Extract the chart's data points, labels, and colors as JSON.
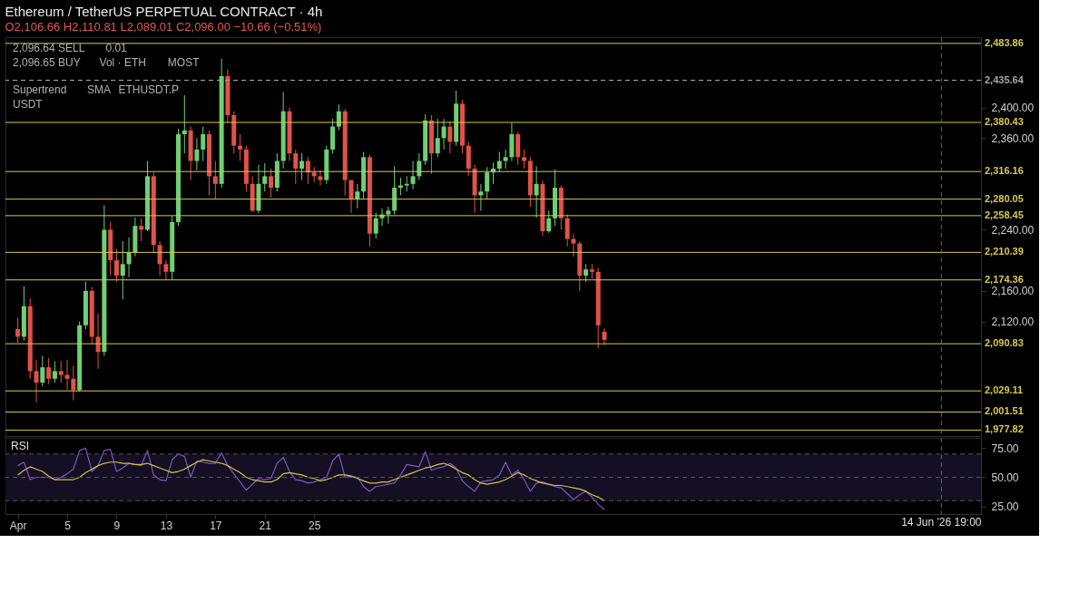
{
  "chart_data": [
    {
      "type": "candlestick",
      "title": "Ethereum / TetherUS PERPETUAL CONTRACT · 4h",
      "subtitle": "O2,106.66 H2,110.81 L2,089.01 C2,096.00 −10.66 (−0.51%)",
      "x": [
        "2026-04-01T00:00",
        "2026-04-01T12:00",
        "2026-04-02T00:00",
        "2026-04-02T12:00",
        "2026-04-03T00:00",
        "2026-04-03T12:00",
        "2026-04-04T00:00",
        "2026-04-04T12:00",
        "2026-04-05T00:00",
        "2026-04-05T12:00",
        "2026-04-06T00:00",
        "2026-04-06T12:00",
        "2026-04-07T00:00",
        "2026-04-07T12:00",
        "2026-04-08T00:00",
        "2026-04-08T12:00",
        "2026-04-09T00:00",
        "2026-04-09T12:00",
        "2026-04-10T00:00",
        "2026-04-10T12:00",
        "2026-04-11T00:00",
        "2026-04-11T12:00",
        "2026-04-12T00:00",
        "2026-04-12T12:00",
        "2026-04-13T00:00",
        "2026-04-13T12:00",
        "2026-04-14T00:00",
        "2026-04-14T12:00",
        "2026-04-15T00:00",
        "2026-04-15T12:00",
        "2026-04-16T00:00",
        "2026-04-16T12:00",
        "2026-04-17T00:00",
        "2026-04-17T12:00",
        "2026-04-18T00:00",
        "2026-04-18T12:00",
        "2026-04-19T00:00",
        "2026-04-19T12:00",
        "2026-04-20T00:00",
        "2026-04-20T12:00",
        "2026-04-21T00:00",
        "2026-04-21T12:00",
        "2026-04-22T00:00",
        "2026-04-22T12:00",
        "2026-04-23T00:00",
        "2026-04-23T12:00",
        "2026-04-24T00:00",
        "2026-04-24T12:00",
        "2026-04-25T00:00",
        "2026-04-25T12:00",
        "2026-04-26T00:00",
        "2026-04-26T12:00",
        "2026-04-27T00:00",
        "2026-04-27T12:00",
        "2026-04-28T00:00",
        "2026-04-28T12:00",
        "2026-04-29T00:00",
        "2026-04-29T12:00",
        "2026-04-30T00:00",
        "2026-04-30T12:00",
        "2026-05-01T00:00",
        "2026-05-01T12:00",
        "2026-05-02T00:00",
        "2026-05-02T12:00",
        "2026-05-03T00:00",
        "2026-05-03T12:00",
        "2026-05-04T00:00",
        "2026-05-04T12:00",
        "2026-05-05T00:00",
        "2026-05-05T12:00",
        "2026-05-06T00:00",
        "2026-05-06T12:00",
        "2026-05-07T00:00",
        "2026-05-07T12:00",
        "2026-05-08T00:00",
        "2026-05-08T12:00",
        "2026-05-09T00:00",
        "2026-05-09T12:00",
        "2026-05-10T00:00",
        "2026-05-10T12:00",
        "2026-05-11T00:00",
        "2026-05-11T12:00",
        "2026-05-12T00:00",
        "2026-05-12T12:00",
        "2026-05-13T00:00",
        "2026-05-13T12:00",
        "2026-05-14T00:00",
        "2026-05-14T12:00",
        "2026-05-15T00:00",
        "2026-05-15T12:00",
        "2026-05-16T00:00",
        "2026-05-16T12:00",
        "2026-05-17T00:00",
        "2026-05-17T12:00",
        "2026-05-18T00:00",
        "2026-05-18T12:00"
      ],
      "ohlc": [
        [
          2110,
          2125,
          2092,
          2100
        ],
        [
          2100,
          2166,
          2095,
          2140
        ],
        [
          2140,
          2150,
          2045,
          2055
        ],
        [
          2055,
          2070,
          2014,
          2040
        ],
        [
          2040,
          2075,
          2035,
          2060
        ],
        [
          2060,
          2072,
          2038,
          2045
        ],
        [
          2045,
          2068,
          2040,
          2055
        ],
        [
          2055,
          2068,
          2040,
          2050
        ],
        [
          2050,
          2070,
          2030,
          2045
        ],
        [
          2045,
          2062,
          2017,
          2030
        ],
        [
          2030,
          2120,
          2028,
          2115
        ],
        [
          2115,
          2172,
          2110,
          2160
        ],
        [
          2160,
          2165,
          2090,
          2100
        ],
        [
          2100,
          2130,
          2058,
          2080
        ],
        [
          2080,
          2272,
          2075,
          2240
        ],
        [
          2240,
          2250,
          2180,
          2200
        ],
        [
          2200,
          2215,
          2172,
          2180
        ],
        [
          2180,
          2225,
          2149,
          2195
        ],
        [
          2195,
          2230,
          2178,
          2210
        ],
        [
          2210,
          2256,
          2205,
          2245
        ],
        [
          2245,
          2255,
          2225,
          2240
        ],
        [
          2240,
          2330,
          2238,
          2310
        ],
        [
          2310,
          2315,
          2210,
          2220
        ],
        [
          2220,
          2225,
          2180,
          2195
        ],
        [
          2195,
          2200,
          2174,
          2185
        ],
        [
          2185,
          2258,
          2175,
          2250
        ],
        [
          2250,
          2372,
          2245,
          2365
        ],
        [
          2365,
          2416,
          2340,
          2370
        ],
        [
          2370,
          2375,
          2305,
          2330
        ],
        [
          2330,
          2360,
          2318,
          2345
        ],
        [
          2345,
          2375,
          2330,
          2365
        ],
        [
          2365,
          2370,
          2285,
          2310
        ],
        [
          2310,
          2330,
          2280,
          2300
        ],
        [
          2300,
          2464,
          2295,
          2441
        ],
        [
          2441,
          2450,
          2380,
          2390
        ],
        [
          2390,
          2395,
          2340,
          2350
        ],
        [
          2350,
          2365,
          2330,
          2345
        ],
        [
          2345,
          2350,
          2290,
          2300
        ],
        [
          2300,
          2310,
          2263,
          2265
        ],
        [
          2265,
          2325,
          2262,
          2300
        ],
        [
          2300,
          2327,
          2290,
          2310
        ],
        [
          2310,
          2320,
          2282,
          2295
        ],
        [
          2295,
          2340,
          2290,
          2330
        ],
        [
          2330,
          2420,
          2320,
          2395
        ],
        [
          2395,
          2400,
          2330,
          2340
        ],
        [
          2340,
          2345,
          2300,
          2320
        ],
        [
          2320,
          2340,
          2305,
          2330
        ],
        [
          2330,
          2335,
          2300,
          2315
        ],
        [
          2315,
          2322,
          2302,
          2310
        ],
        [
          2310,
          2318,
          2298,
          2305
        ],
        [
          2305,
          2350,
          2300,
          2345
        ],
        [
          2345,
          2385,
          2340,
          2375
        ],
        [
          2375,
          2404,
          2370,
          2395
        ],
        [
          2395,
          2398,
          2285,
          2305
        ],
        [
          2305,
          2305,
          2262,
          2280
        ],
        [
          2280,
          2300,
          2268,
          2290
        ],
        [
          2290,
          2342,
          2280,
          2335
        ],
        [
          2335,
          2338,
          2218,
          2235
        ],
        [
          2235,
          2262,
          2228,
          2255
        ],
        [
          2255,
          2268,
          2245,
          2260
        ],
        [
          2260,
          2270,
          2248,
          2265
        ],
        [
          2265,
          2323,
          2260,
          2295
        ],
        [
          2295,
          2308,
          2285,
          2298
        ],
        [
          2298,
          2310,
          2290,
          2300
        ],
        [
          2300,
          2330,
          2293,
          2310
        ],
        [
          2310,
          2340,
          2305,
          2330
        ],
        [
          2330,
          2391,
          2325,
          2383
        ],
        [
          2383,
          2390,
          2313,
          2340
        ],
        [
          2340,
          2385,
          2335,
          2360
        ],
        [
          2360,
          2385,
          2345,
          2375
        ],
        [
          2375,
          2382,
          2340,
          2355
        ],
        [
          2355,
          2422,
          2350,
          2405
        ],
        [
          2405,
          2410,
          2340,
          2350
        ],
        [
          2350,
          2355,
          2310,
          2320
        ],
        [
          2320,
          2325,
          2262,
          2285
        ],
        [
          2285,
          2300,
          2265,
          2290
        ],
        [
          2290,
          2322,
          2280,
          2315
        ],
        [
          2315,
          2328,
          2300,
          2320
        ],
        [
          2320,
          2342,
          2315,
          2330
        ],
        [
          2330,
          2345,
          2320,
          2335
        ],
        [
          2335,
          2380,
          2330,
          2365
        ],
        [
          2365,
          2368,
          2325,
          2335
        ],
        [
          2335,
          2345,
          2320,
          2330
        ],
        [
          2330,
          2335,
          2270,
          2285
        ],
        [
          2285,
          2323,
          2256,
          2300
        ],
        [
          2300,
          2305,
          2232,
          2238
        ],
        [
          2238,
          2265,
          2236,
          2255
        ],
        [
          2255,
          2319,
          2245,
          2295
        ],
        [
          2295,
          2298,
          2240,
          2255
        ],
        [
          2255,
          2260,
          2218,
          2228
        ],
        [
          2228,
          2235,
          2205,
          2222
        ],
        [
          2222,
          2225,
          2160,
          2180
        ],
        [
          2180,
          2195,
          2172,
          2188
        ],
        [
          2188,
          2195,
          2176,
          2185
        ],
        [
          2185,
          2190,
          2085,
          2115
        ],
        [
          2106.66,
          2110.81,
          2089.01,
          2096.0
        ]
      ],
      "colors": [
        "#e0524a",
        "#6fcf73",
        "#e0524a",
        "#e0524a",
        "#6fcf73",
        "#e0524a",
        "#6fcf73",
        "#e0524a",
        "#e0524a",
        "#e0524a",
        "#6fcf73",
        "#6fcf73",
        "#e0524a",
        "#e0524a",
        "#6fcf73",
        "#e0524a",
        "#e0524a",
        "#6fcf73",
        "#6fcf73",
        "#6fcf73",
        "#e0524a",
        "#6fcf73",
        "#e0524a",
        "#e0524a",
        "#e0524a",
        "#6fcf73",
        "#6fcf73",
        "#6fcf73",
        "#e0524a",
        "#6fcf73",
        "#6fcf73",
        "#e0524a",
        "#e0524a",
        "#6fcf73",
        "#e0524a",
        "#e0524a",
        "#e0524a",
        "#e0524a",
        "#e0524a",
        "#6fcf73",
        "#6fcf73",
        "#e0524a",
        "#6fcf73",
        "#6fcf73",
        "#e0524a",
        "#e0524a",
        "#6fcf73",
        "#e0524a",
        "#e0524a",
        "#e0524a",
        "#6fcf73",
        "#6fcf73",
        "#6fcf73",
        "#e0524a",
        "#e0524a",
        "#6fcf73",
        "#6fcf73",
        "#e0524a",
        "#6fcf73",
        "#6fcf73",
        "#6fcf73",
        "#6fcf73",
        "#6fcf73",
        "#6fcf73",
        "#6fcf73",
        "#6fcf73",
        "#6fcf73",
        "#e0524a",
        "#6fcf73",
        "#6fcf73",
        "#e0524a",
        "#6fcf73",
        "#e0524a",
        "#e0524a",
        "#e0524a",
        "#6fcf73",
        "#6fcf73",
        "#6fcf73",
        "#6fcf73",
        "#6fcf73",
        "#6fcf73",
        "#e0524a",
        "#e0524a",
        "#e0524a",
        "#6fcf73",
        "#e0524a",
        "#6fcf73",
        "#6fcf73",
        "#e0524a",
        "#e0524a",
        "#e0524a",
        "#e0524a",
        "#6fcf73",
        "#e0524a",
        "#e0524a",
        "#e0524a"
      ],
      "xlim": [
        "2026-03-31",
        "2026-06-18"
      ],
      "ylim": [
        1970,
        2492
      ],
      "yticks": [
        {
          "value": 2120,
          "label": "2,120.00"
        },
        {
          "value": 2160,
          "label": "2,160.00"
        },
        {
          "value": 2240,
          "label": "2,240.00"
        },
        {
          "value": 2360,
          "label": "2,360.00"
        },
        {
          "value": 2400,
          "label": "2,400.00"
        }
      ],
      "tick_labels": "y",
      "ref_lines": [
        {
          "axis": "y",
          "value": 2483.86,
          "label": "2,483.86",
          "color": "#d8c84a"
        },
        {
          "axis": "y",
          "value": 2435.64,
          "label": "2,435.64",
          "color": "#a8a8a8",
          "line_style": "dashed"
        },
        {
          "axis": "y",
          "value": 2380.43,
          "label": "2,380.43",
          "color": "#d8c84a"
        },
        {
          "axis": "y",
          "value": 2316.16,
          "label": "2,316.16",
          "color": "#d8c84a"
        },
        {
          "axis": "y",
          "value": 2280.05,
          "label": "2,280.05",
          "color": "#d8c84a"
        },
        {
          "axis": "y",
          "value": 2258.45,
          "label": "2,258.45",
          "color": "#d8c84a"
        },
        {
          "axis": "y",
          "value": 2210.39,
          "label": "2,210.39",
          "color": "#d8c84a"
        },
        {
          "axis": "y",
          "value": 2174.36,
          "label": "2,174.36",
          "color": "#d8c84a"
        },
        {
          "axis": "y",
          "value": 2090.83,
          "label": "2,090.83",
          "color": "#d8c84a"
        },
        {
          "axis": "y",
          "value": 2029.11,
          "label": "2,029.11",
          "color": "#d8c84a"
        },
        {
          "axis": "y",
          "value": 2001.51,
          "label": "2,001.51",
          "color": "#d8c84a"
        },
        {
          "axis": "y",
          "value": 1977.82,
          "label": "1,977.82",
          "color": "#d8c84a"
        },
        {
          "axis": "x",
          "value": "2026-06-14T19:00",
          "color": "#666666",
          "line_style": "dashed"
        }
      ],
      "annotations": [
        "2,096.64 SELL",
        "0.01",
        "2,096.65 BUY",
        "Vol · ETH",
        "MOST",
        "Supertrend",
        "SMA",
        "ETHUSDT.P",
        "USDT"
      ],
      "grid": false
    },
    {
      "type": "line",
      "title": "RSI",
      "x": [
        "2026-04-01T00:00",
        "2026-04-01T12:00",
        "2026-04-02T00:00",
        "2026-04-02T12:00",
        "2026-04-03T00:00",
        "2026-04-03T12:00",
        "2026-04-04T00:00",
        "2026-04-04T12:00",
        "2026-04-05T00:00",
        "2026-04-05T12:00",
        "2026-04-06T00:00",
        "2026-04-06T12:00",
        "2026-04-07T00:00",
        "2026-04-07T12:00",
        "2026-04-08T00:00",
        "2026-04-08T12:00",
        "2026-04-09T00:00",
        "2026-04-09T12:00",
        "2026-04-10T00:00",
        "2026-04-10T12:00",
        "2026-04-11T00:00",
        "2026-04-11T12:00",
        "2026-04-12T00:00",
        "2026-04-12T12:00",
        "2026-04-13T00:00",
        "2026-04-13T12:00",
        "2026-04-14T00:00",
        "2026-04-14T12:00",
        "2026-04-15T00:00",
        "2026-04-15T12:00",
        "2026-04-16T00:00",
        "2026-04-16T12:00",
        "2026-04-17T00:00",
        "2026-04-17T12:00",
        "2026-04-18T00:00",
        "2026-04-18T12:00",
        "2026-04-19T00:00",
        "2026-04-19T12:00",
        "2026-04-20T00:00",
        "2026-04-20T12:00",
        "2026-04-21T00:00",
        "2026-04-21T12:00",
        "2026-04-22T00:00",
        "2026-04-22T12:00",
        "2026-04-23T00:00",
        "2026-04-23T12:00",
        "2026-04-24T00:00",
        "2026-04-24T12:00",
        "2026-04-25T00:00",
        "2026-04-25T12:00",
        "2026-04-26T00:00",
        "2026-04-26T12:00",
        "2026-04-27T00:00",
        "2026-04-27T12:00",
        "2026-04-28T00:00",
        "2026-04-28T12:00",
        "2026-04-29T00:00",
        "2026-04-29T12:00",
        "2026-04-30T00:00",
        "2026-04-30T12:00",
        "2026-05-01T00:00",
        "2026-05-01T12:00",
        "2026-05-02T00:00",
        "2026-05-02T12:00",
        "2026-05-03T00:00",
        "2026-05-03T12:00",
        "2026-05-04T00:00",
        "2026-05-04T12:00",
        "2026-05-05T00:00",
        "2026-05-05T12:00",
        "2026-05-06T00:00",
        "2026-05-06T12:00",
        "2026-05-07T00:00",
        "2026-05-07T12:00",
        "2026-05-08T00:00",
        "2026-05-08T12:00",
        "2026-05-09T00:00",
        "2026-05-09T12:00",
        "2026-05-10T00:00",
        "2026-05-10T12:00",
        "2026-05-11T00:00",
        "2026-05-11T12:00",
        "2026-05-12T00:00",
        "2026-05-12T12:00",
        "2026-05-13T00:00",
        "2026-05-13T12:00",
        "2026-05-14T00:00",
        "2026-05-14T12:00",
        "2026-05-15T00:00",
        "2026-05-15T12:00",
        "2026-05-16T00:00",
        "2026-05-16T12:00",
        "2026-05-17T00:00",
        "2026-05-17T12:00",
        "2026-05-18T00:00",
        "2026-05-18T12:00"
      ],
      "series": [
        {
          "color": "#7e57c2",
          "values": [
            60,
            63,
            48,
            50,
            50,
            50,
            48,
            50,
            53,
            57,
            73,
            75,
            55,
            60,
            73,
            74,
            55,
            58,
            62,
            61,
            60,
            73,
            52,
            48,
            47,
            65,
            70,
            68,
            50,
            64,
            63,
            62,
            62,
            71,
            60,
            53,
            46,
            39,
            44,
            49,
            48,
            49,
            62,
            67,
            55,
            48,
            47,
            45,
            46,
            48,
            50,
            64,
            70,
            50,
            51,
            50,
            42,
            38,
            42,
            43,
            44,
            45,
            52,
            61,
            60,
            59,
            72,
            56,
            58,
            59,
            62,
            58,
            47,
            42,
            38,
            46,
            47,
            48,
            52,
            63,
            52,
            56,
            48,
            38,
            45,
            46,
            44,
            42,
            41,
            36,
            31,
            35,
            38,
            33,
            27,
            22
          ]
        },
        {
          "color": "#d4c24a",
          "values": [
            52,
            56,
            59,
            57,
            55,
            51,
            48,
            48,
            48,
            48,
            50,
            54,
            57,
            60,
            62,
            63,
            63,
            62,
            62,
            61,
            61,
            62,
            60,
            58,
            56,
            54,
            55,
            57,
            60,
            63,
            65,
            64,
            63,
            62,
            60,
            57,
            54,
            50,
            48,
            47,
            46,
            46,
            48,
            53,
            54,
            53,
            52,
            50,
            49,
            47,
            48,
            50,
            52,
            52,
            51,
            49,
            47,
            45,
            45,
            46,
            46,
            48,
            50,
            52,
            54,
            56,
            58,
            59,
            61,
            62,
            60,
            57,
            54,
            52,
            48,
            45,
            44,
            45,
            46,
            48,
            51,
            54,
            52,
            49,
            47,
            45,
            44,
            43,
            43,
            42,
            41,
            40,
            38,
            35,
            33,
            30
          ]
        }
      ],
      "xlim": [
        "2026-03-31",
        "2026-06-18"
      ],
      "xticks": [
        {
          "value": "2026-04-01T00:00",
          "label": "Apr"
        },
        {
          "value": "2026-04-05T00:00",
          "label": "5"
        },
        {
          "value": "2026-04-09T00:00",
          "label": "9"
        },
        {
          "value": "2026-04-13T00:00",
          "label": "13"
        },
        {
          "value": "2026-04-17T00:00",
          "label": "17"
        },
        {
          "value": "2026-04-21T00:00",
          "label": "21"
        },
        {
          "value": "2026-04-25T00:00",
          "label": "25"
        }
      ],
      "ylim": [
        18.5,
        83.8
      ],
      "yticks": [
        {
          "value": 25,
          "label": "25.00"
        },
        {
          "value": 50,
          "label": "50.00"
        },
        {
          "value": 75,
          "label": "75.00"
        }
      ],
      "bands": [
        {
          "axis": "y",
          "from": 30,
          "to": 70,
          "color": "#140f22"
        }
      ],
      "ref_lines": [
        {
          "axis": "y",
          "value": 70,
          "color": "#555555",
          "line_style": "dashed"
        },
        {
          "axis": "y",
          "value": 50,
          "color": "#555555",
          "line_style": "dashed"
        },
        {
          "axis": "y",
          "value": 30,
          "color": "#555555",
          "line_style": "dashed"
        },
        {
          "axis": "x",
          "value": "2026-06-14T19:00",
          "label": "14 Jun '26  19:00",
          "color": "#666666",
          "line_style": "dashed"
        }
      ],
      "grid": false
    }
  ]
}
